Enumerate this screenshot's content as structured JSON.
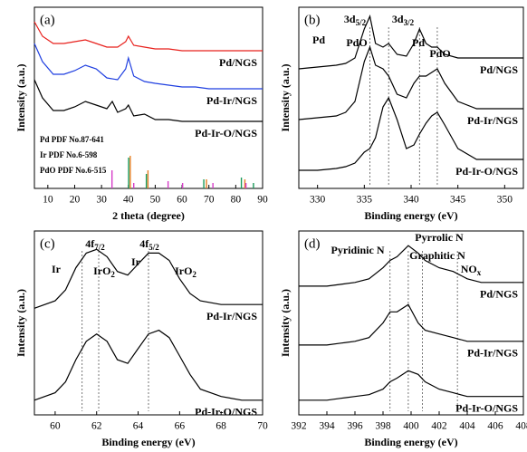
{
  "chart_data": [
    {
      "type": "line",
      "panel_label": "(a)",
      "xlabel": "2 theta (degree)",
      "ylabel": "Intensity (a.u.)",
      "xlim": [
        5,
        90
      ],
      "xticks": [
        10,
        20,
        30,
        40,
        50,
        60,
        70,
        80,
        90
      ],
      "ylim": [
        0,
        100
      ],
      "series": [
        {
          "name": "Pd/NGS",
          "color": "#e8201c",
          "x": [
            5,
            8,
            12,
            16,
            20,
            24,
            28,
            32,
            36,
            39,
            40,
            42,
            46,
            50,
            55,
            60,
            65,
            70,
            75,
            80,
            85,
            90
          ],
          "values": [
            92,
            84,
            80,
            80,
            81,
            82,
            80,
            78,
            78,
            81,
            84,
            79,
            78,
            77,
            77,
            76,
            76,
            76,
            76,
            76,
            76,
            76
          ]
        },
        {
          "name": "Pd-Ir/NGS",
          "color": "#1f3fe0",
          "x": [
            5,
            8,
            12,
            16,
            20,
            24,
            28,
            32,
            36,
            39,
            40,
            42,
            46,
            50,
            55,
            60,
            65,
            70,
            75,
            80,
            85,
            90
          ],
          "values": [
            80,
            70,
            63,
            63,
            65,
            68,
            66,
            61,
            60,
            66,
            72,
            62,
            59,
            58,
            57,
            56,
            56,
            55,
            55,
            55,
            55,
            55
          ]
        },
        {
          "name": "Pd-Ir-O/NGS",
          "color": "#000000",
          "x": [
            5,
            8,
            12,
            16,
            20,
            24,
            28,
            32,
            34,
            36,
            39,
            40,
            42,
            46,
            50,
            55,
            60,
            65,
            70,
            75,
            80,
            85,
            90
          ],
          "values": [
            60,
            50,
            43,
            43,
            45,
            48,
            46,
            44,
            48,
            42,
            44,
            46,
            40,
            41,
            38,
            38,
            37,
            37,
            37,
            37,
            37,
            37,
            37
          ]
        }
      ],
      "reference_patterns": [
        {
          "name": "Pd PDF No.87-641",
          "color": "#1a9a5a",
          "x": [
            40.1,
            46.7,
            68.1,
            82.1,
            86.6
          ],
          "values": [
            17,
            8,
            5,
            6,
            3
          ]
        },
        {
          "name": "Ir PDF No.6-598",
          "color": "#e67e22",
          "x": [
            40.7,
            47.3,
            69.1,
            83.4
          ],
          "values": [
            18,
            10,
            5,
            5
          ]
        },
        {
          "name": "PdO PDF No.6-515",
          "color": "#d63cc8",
          "x": [
            33.9,
            42.0,
            54.8,
            60.2,
            71.5,
            83.8
          ],
          "values": [
            10,
            3,
            4,
            3,
            3,
            3
          ]
        }
      ]
    },
    {
      "type": "line",
      "panel_label": "(b)",
      "xlabel": "Binding energy (eV)",
      "ylabel": "Intensity (a.u.)",
      "xlim": [
        328,
        352
      ],
      "xticks": [
        330,
        335,
        340,
        345,
        350
      ],
      "ylim": [
        0,
        100
      ],
      "reference_lines": [
        335.6,
        337.6,
        340.9,
        342.8
      ],
      "annotations": [
        {
          "text": "3d",
          "sub": "5/2",
          "color": "#000000"
        },
        {
          "text": "3d",
          "sub": "3/2",
          "color": "#000000"
        },
        {
          "text": "Pd",
          "color": "#1a9a5a"
        },
        {
          "text": "PdO",
          "color": "#e67e22"
        },
        {
          "text": "Pd",
          "color": "#7b68c8"
        },
        {
          "text": "PdO",
          "color": "#d63cc8"
        }
      ],
      "series": [
        {
          "name": "Pd/NGS",
          "color": "#000000",
          "x": [
            328,
            330,
            332,
            333,
            334,
            335,
            335.6,
            336.2,
            337,
            337.6,
            338.5,
            339.5,
            340.3,
            340.9,
            341.6,
            342.2,
            342.8,
            343.6,
            345,
            347,
            349,
            352
          ],
          "values": [
            66,
            67,
            68,
            69,
            72,
            88,
            95,
            80,
            78,
            80,
            74,
            73,
            80,
            88,
            80,
            78,
            78,
            74,
            72,
            72,
            72,
            72
          ]
        },
        {
          "name": "Pd-Ir/NGS",
          "color": "#000000",
          "x": [
            328,
            330,
            332,
            333,
            334,
            335,
            335.6,
            336.2,
            337,
            337.6,
            338.5,
            339.5,
            340.3,
            340.9,
            341.6,
            342.2,
            342.8,
            343.6,
            345,
            347,
            349,
            352
          ],
          "values": [
            38,
            39,
            40,
            42,
            48,
            70,
            78,
            68,
            66,
            62,
            52,
            50,
            58,
            62,
            62,
            64,
            66,
            58,
            48,
            44,
            44,
            44
          ]
        },
        {
          "name": "Pd-Ir-O/NGS",
          "color": "#000000",
          "x": [
            328,
            330,
            332,
            333,
            334,
            335,
            335.6,
            336.2,
            337,
            337.6,
            338.5,
            339.5,
            340.3,
            340.9,
            341.6,
            342.2,
            342.8,
            343.6,
            345,
            347,
            349,
            352
          ],
          "values": [
            10,
            10,
            11,
            12,
            14,
            20,
            22,
            28,
            45,
            50,
            38,
            22,
            24,
            30,
            36,
            40,
            42,
            35,
            22,
            16,
            16,
            16
          ]
        }
      ]
    },
    {
      "type": "line",
      "panel_label": "(c)",
      "xlabel": "Binding energy (eV)",
      "ylabel": "Intensity (a.u.)",
      "xlim": [
        59,
        70
      ],
      "xticks": [
        60,
        62,
        64,
        66,
        68,
        70
      ],
      "ylim": [
        0,
        100
      ],
      "reference_lines": [
        61.3,
        62.1,
        64.5
      ],
      "annotations": [
        {
          "text": "4f",
          "sub": "7/2",
          "color": "#000000"
        },
        {
          "text": "4f",
          "sub": "5/2",
          "color": "#000000"
        },
        {
          "text": "Ir",
          "color": "#1a9a5a"
        },
        {
          "text": "IrO",
          "sub": "2",
          "color": "#e67e22"
        },
        {
          "text": "Ir",
          "color": "#7b68c8"
        },
        {
          "text": "IrO",
          "sub": "2",
          "color": "#d63cc8"
        }
      ],
      "series": [
        {
          "name": "Pd-Ir/NGS",
          "color": "#000000",
          "x": [
            59,
            60,
            60.5,
            61,
            61.5,
            62,
            62.5,
            63,
            63.5,
            64,
            64.5,
            65,
            65.5,
            66,
            66.5,
            67,
            68,
            69,
            70
          ],
          "values": [
            58,
            62,
            68,
            80,
            88,
            90,
            86,
            78,
            76,
            82,
            88,
            88,
            84,
            74,
            66,
            62,
            60,
            60,
            60
          ]
        },
        {
          "name": "Pd-Ir-O/NGS",
          "color": "#000000",
          "x": [
            59,
            60,
            60.5,
            61,
            61.5,
            62,
            62.5,
            63,
            63.5,
            64,
            64.5,
            65,
            65.5,
            66,
            66.5,
            67,
            68,
            69,
            70
          ],
          "values": [
            8,
            12,
            18,
            30,
            40,
            44,
            40,
            30,
            28,
            36,
            44,
            46,
            42,
            32,
            22,
            14,
            10,
            8,
            8
          ]
        }
      ]
    },
    {
      "type": "line",
      "panel_label": "(d)",
      "xlabel": "Binding energy (eV)",
      "ylabel": "Intensity (a.u.)",
      "xlim": [
        392,
        408
      ],
      "xticks": [
        392,
        394,
        396,
        398,
        400,
        402,
        404,
        406,
        408
      ],
      "ylim": [
        0,
        100
      ],
      "reference_lines": [
        398.5,
        399.8,
        400.8,
        403.3
      ],
      "annotations": [
        {
          "text": "Pyridinic N",
          "color": "#1a9a5a"
        },
        {
          "text": "Pyrrolic N",
          "color": "#e67e22"
        },
        {
          "text": "Graphitic N",
          "color": "#7b68c8"
        },
        {
          "text": "NO",
          "sub": "x",
          "color": "#d63cc8"
        }
      ],
      "series": [
        {
          "name": "Pd/NGS",
          "color": "#000000",
          "x": [
            392,
            394,
            395,
            396,
            397,
            398,
            398.5,
            399,
            399.8,
            400.5,
            401,
            402,
            403,
            404,
            405,
            406,
            408
          ],
          "values": [
            70,
            70,
            71,
            72,
            74,
            80,
            84,
            86,
            92,
            88,
            84,
            80,
            78,
            74,
            72,
            72,
            72
          ]
        },
        {
          "name": "Pd-Ir/NGS",
          "color": "#000000",
          "x": [
            392,
            394,
            395,
            396,
            397,
            398,
            398.5,
            399,
            399.8,
            400.5,
            401,
            402,
            403,
            404,
            405,
            406,
            408
          ],
          "values": [
            38,
            38,
            39,
            40,
            42,
            50,
            56,
            56,
            60,
            50,
            46,
            44,
            42,
            40,
            40,
            40,
            40
          ]
        },
        {
          "name": "Pd-Ir-O/NGS",
          "color": "#000000",
          "x": [
            392,
            394,
            395,
            396,
            397,
            398,
            398.5,
            399,
            399.8,
            400.5,
            401,
            402,
            403,
            404,
            405,
            406,
            408
          ],
          "values": [
            8,
            8,
            9,
            10,
            11,
            14,
            18,
            20,
            24,
            22,
            18,
            14,
            12,
            10,
            10,
            10,
            10
          ]
        }
      ]
    }
  ]
}
